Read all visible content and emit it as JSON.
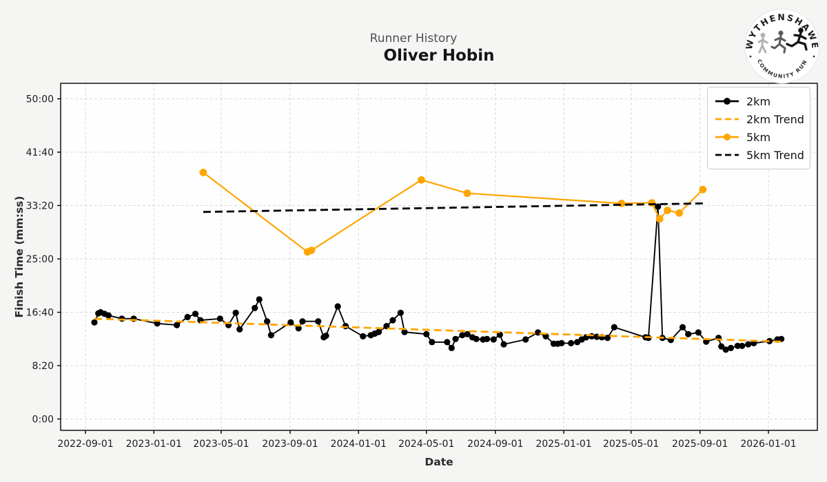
{
  "figure": {
    "suptitle": "Runner History",
    "title": "Oliver Hobin",
    "xlabel": "Date",
    "ylabel": "Finish Time (mm:ss)"
  },
  "logo": {
    "top_text": "WYTHENSHAWE",
    "bottom_text": "COMMUNITY RUN"
  },
  "colors": {
    "orange": "#FFA500",
    "black": "#000000",
    "grid": "#d9d9d9",
    "plot_bg": "#fefefe",
    "figure_bg": "#f5f5f4"
  },
  "legend": {
    "items": [
      {
        "label": "2km",
        "color": "#000000",
        "dash": false,
        "marker": true
      },
      {
        "label": "2km Trend",
        "color": "#FFA500",
        "dash": true,
        "marker": false
      },
      {
        "label": "5km",
        "color": "#FFA500",
        "dash": false,
        "marker": true
      },
      {
        "label": "5km Trend",
        "color": "#000000",
        "dash": true,
        "marker": false
      }
    ]
  },
  "chart_data": {
    "type": "line",
    "title": "Oliver Hobin",
    "suptitle": "Runner History",
    "xlabel": "Date",
    "ylabel": "Finish Time (mm:ss)",
    "grid": true,
    "legend_position": "upper right",
    "x_ticks": [
      "2022-09-01",
      "2023-01-01",
      "2023-05-01",
      "2023-09-01",
      "2024-01-01",
      "2024-05-01",
      "2024-09-01",
      "2025-01-01",
      "2025-05-01",
      "2025-09-01",
      "2026-01-01"
    ],
    "y_ticks": [
      "0:00",
      "8:20",
      "16:40",
      "25:00",
      "33:20",
      "41:40",
      "50:00"
    ],
    "y_range_mmss": [
      "-1:46",
      "52:25"
    ],
    "series": [
      {
        "name": "2km",
        "color": "#000000",
        "kind": "data",
        "points": [
          [
            "2022-09-17",
            "15:05"
          ],
          [
            "2022-09-24",
            "16:30"
          ],
          [
            "2022-09-28",
            "16:40"
          ],
          [
            "2022-10-05",
            "16:25"
          ],
          [
            "2022-10-12",
            "16:10"
          ],
          [
            "2022-11-05",
            "15:40"
          ],
          [
            "2022-11-26",
            "15:40"
          ],
          [
            "2023-01-07",
            "14:55"
          ],
          [
            "2023-02-11",
            "14:40"
          ],
          [
            "2023-03-02",
            "15:55"
          ],
          [
            "2023-03-16",
            "16:25"
          ],
          [
            "2023-03-25",
            "15:25"
          ],
          [
            "2023-04-29",
            "15:40"
          ],
          [
            "2023-05-14",
            "14:40"
          ],
          [
            "2023-05-27",
            "16:35"
          ],
          [
            "2023-06-03",
            "14:00"
          ],
          [
            "2023-06-30",
            "17:20"
          ],
          [
            "2023-07-08",
            "18:40"
          ],
          [
            "2023-07-22",
            "15:15"
          ],
          [
            "2023-07-29",
            "13:05"
          ],
          [
            "2023-09-02",
            "15:05"
          ],
          [
            "2023-09-16",
            "14:10"
          ],
          [
            "2023-09-23",
            "15:15"
          ],
          [
            "2023-10-21",
            "15:15"
          ],
          [
            "2023-10-31",
            "12:45"
          ],
          [
            "2023-11-04",
            "13:00"
          ],
          [
            "2023-11-25",
            "17:35"
          ],
          [
            "2023-12-09",
            "14:30"
          ],
          [
            "2024-01-09",
            "12:55"
          ],
          [
            "2024-01-23",
            "13:05"
          ],
          [
            "2024-01-30",
            "13:20"
          ],
          [
            "2024-02-06",
            "13:35"
          ],
          [
            "2024-02-20",
            "14:30"
          ],
          [
            "2024-03-02",
            "15:25"
          ],
          [
            "2024-03-16",
            "16:35"
          ],
          [
            "2024-03-23",
            "13:35"
          ],
          [
            "2024-05-01",
            "13:15"
          ],
          [
            "2024-05-11",
            "12:00"
          ],
          [
            "2024-06-07",
            "12:00"
          ],
          [
            "2024-06-15",
            "11:05"
          ],
          [
            "2024-06-22",
            "12:30"
          ],
          [
            "2024-07-04",
            "13:05"
          ],
          [
            "2024-07-13",
            "13:15"
          ],
          [
            "2024-07-22",
            "12:45"
          ],
          [
            "2024-07-29",
            "12:30"
          ],
          [
            "2024-08-10",
            "12:25"
          ],
          [
            "2024-08-17",
            "12:30"
          ],
          [
            "2024-08-29",
            "12:25"
          ],
          [
            "2024-09-09",
            "13:10"
          ],
          [
            "2024-09-16",
            "11:40"
          ],
          [
            "2024-10-25",
            "12:25"
          ],
          [
            "2024-11-16",
            "13:30"
          ],
          [
            "2024-11-30",
            "12:55"
          ],
          [
            "2024-12-14",
            "11:45"
          ],
          [
            "2024-12-21",
            "11:45"
          ],
          [
            "2024-12-28",
            "11:50"
          ],
          [
            "2025-01-14",
            "11:50"
          ],
          [
            "2025-01-25",
            "12:00"
          ],
          [
            "2025-02-02",
            "12:25"
          ],
          [
            "2025-02-10",
            "12:45"
          ],
          [
            "2025-02-20",
            "12:55"
          ],
          [
            "2025-03-01",
            "12:50"
          ],
          [
            "2025-03-10",
            "12:45"
          ],
          [
            "2025-03-20",
            "12:40"
          ],
          [
            "2025-04-01",
            "14:20"
          ],
          [
            "2025-05-27",
            "12:45"
          ],
          [
            "2025-06-01",
            "12:40"
          ],
          [
            "2025-06-18",
            "33:10"
          ],
          [
            "2025-06-26",
            "12:40"
          ],
          [
            "2025-07-11",
            "12:20"
          ],
          [
            "2025-08-01",
            "14:20"
          ],
          [
            "2025-08-11",
            "13:15"
          ],
          [
            "2025-08-29",
            "13:30"
          ],
          [
            "2025-09-12",
            "12:05"
          ],
          [
            "2025-10-04",
            "12:40"
          ],
          [
            "2025-10-09",
            "11:20"
          ],
          [
            "2025-10-17",
            "10:50"
          ],
          [
            "2025-10-26",
            "11:05"
          ],
          [
            "2025-11-07",
            "11:25"
          ],
          [
            "2025-11-15",
            "11:25"
          ],
          [
            "2025-11-26",
            "11:40"
          ],
          [
            "2025-12-06",
            "11:50"
          ],
          [
            "2026-01-03",
            "12:10"
          ],
          [
            "2026-01-17",
            "12:25"
          ],
          [
            "2026-01-24",
            "12:30"
          ]
        ]
      },
      {
        "name": "2km Trend",
        "color": "#FFA500",
        "kind": "trend",
        "points": [
          [
            "2022-09-17",
            "15:40"
          ],
          [
            "2026-01-24",
            "12:05"
          ]
        ]
      },
      {
        "name": "5km",
        "color": "#FFA500",
        "kind": "data",
        "points": [
          [
            "2023-03-30",
            "38:30"
          ],
          [
            "2023-10-02",
            "26:05"
          ],
          [
            "2023-10-09",
            "26:20"
          ],
          [
            "2024-04-22",
            "37:20"
          ],
          [
            "2024-07-13",
            "35:15"
          ],
          [
            "2025-04-14",
            "33:40"
          ],
          [
            "2025-06-07",
            "33:45"
          ],
          [
            "2025-06-21",
            "31:15"
          ],
          [
            "2025-07-05",
            "32:35"
          ],
          [
            "2025-07-26",
            "32:10"
          ],
          [
            "2025-09-06",
            "35:50"
          ]
        ]
      },
      {
        "name": "5km Trend",
        "color": "#000000",
        "kind": "trend",
        "points": [
          [
            "2023-03-30",
            "32:20"
          ],
          [
            "2025-09-06",
            "33:40"
          ]
        ]
      }
    ]
  }
}
